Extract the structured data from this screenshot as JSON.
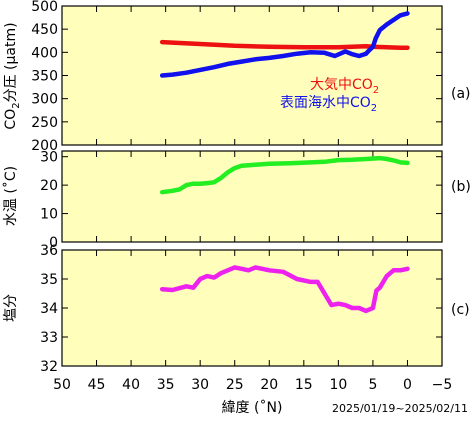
{
  "chart_data": [
    {
      "type": "line",
      "panel_label": "(a)",
      "ylabel": "CO2分圧 (µatm)",
      "ylim": [
        200,
        500
      ],
      "yticks": [
        200,
        250,
        300,
        350,
        400,
        450,
        500
      ],
      "xlim": [
        50,
        -5
      ],
      "grid": false,
      "legend_position": "bottom-right",
      "series": [
        {
          "name": "大気中CO2",
          "color": "#ee1111",
          "x": [
            35.5,
            30,
            25,
            20,
            15,
            10,
            8,
            6,
            5,
            3,
            1,
            0
          ],
          "y": [
            422,
            418,
            414,
            412,
            411,
            411,
            412,
            413,
            412,
            411,
            410,
            410
          ]
        },
        {
          "name": "表面海水中CO2",
          "color": "#1111ee",
          "x": [
            35.5,
            34,
            32,
            30,
            28,
            26,
            24,
            22,
            20,
            18,
            16,
            14,
            12,
            10.5,
            9,
            8,
            7,
            6,
            5.5,
            5,
            4.6,
            4,
            3,
            2,
            1,
            0
          ],
          "y": [
            350,
            352,
            356,
            362,
            368,
            375,
            380,
            385,
            388,
            392,
            397,
            400,
            399,
            392,
            402,
            396,
            392,
            397,
            405,
            412,
            430,
            448,
            460,
            470,
            480,
            484
          ]
        }
      ]
    },
    {
      "type": "line",
      "panel_label": "(b)",
      "ylabel": "水温 (˚C)",
      "ylim": [
        0,
        32
      ],
      "yticks": [
        0,
        10,
        20,
        30
      ],
      "xlim": [
        50,
        -5
      ],
      "grid": false,
      "series": [
        {
          "name": "",
          "color": "#22ee22",
          "x": [
            35.5,
            34,
            33,
            32,
            31,
            30,
            29,
            28,
            27,
            26,
            25,
            24,
            23,
            22,
            20,
            17,
            14,
            12,
            10,
            8,
            6,
            4,
            3,
            2,
            1,
            0
          ],
          "y": [
            17.5,
            18,
            18.5,
            20,
            20.5,
            20.5,
            20.7,
            21,
            22.5,
            24.5,
            26,
            26.8,
            27,
            27.2,
            27.5,
            27.7,
            28,
            28.2,
            28.8,
            28.9,
            29.2,
            29.5,
            29.2,
            28.7,
            28,
            27.8
          ]
        }
      ]
    },
    {
      "type": "line",
      "panel_label": "(c)",
      "ylabel": "塩分",
      "ylim": [
        32,
        36
      ],
      "yticks": [
        32,
        33,
        34,
        35,
        36
      ],
      "xlim": [
        50,
        -5
      ],
      "xticks": [
        50,
        45,
        40,
        35,
        30,
        25,
        20,
        15,
        10,
        5,
        0,
        -5
      ],
      "xlabel": "緯度 (˚N)",
      "grid": false,
      "series": [
        {
          "name": "",
          "color": "#ee22ee",
          "x": [
            35.5,
            34,
            32,
            31,
            30,
            29,
            28,
            27,
            26,
            25,
            24,
            23,
            22,
            20,
            18,
            16,
            14,
            13,
            12,
            11,
            10,
            9,
            8,
            7,
            6,
            5.5,
            5,
            4.5,
            4,
            3,
            2,
            1,
            0
          ],
          "y": [
            34.65,
            34.62,
            34.75,
            34.7,
            35.0,
            35.1,
            35.05,
            35.2,
            35.3,
            35.4,
            35.35,
            35.3,
            35.4,
            35.3,
            35.25,
            35.0,
            34.9,
            34.9,
            34.5,
            34.1,
            34.15,
            34.1,
            34.0,
            34.0,
            33.9,
            33.95,
            34.0,
            34.6,
            34.7,
            35.1,
            35.3,
            35.3,
            35.35
          ]
        }
      ]
    }
  ],
  "legend_lines": [
    {
      "base": "大気中CO",
      "sub": "2",
      "color": "#ee1111"
    },
    {
      "base": "表面海水中CO",
      "sub": "2",
      "color": "#1111ee"
    }
  ],
  "date_range": "2025/01/19~2025/02/11",
  "colors": {
    "panel_bg": "#ffffbb",
    "frame": "#000000"
  }
}
